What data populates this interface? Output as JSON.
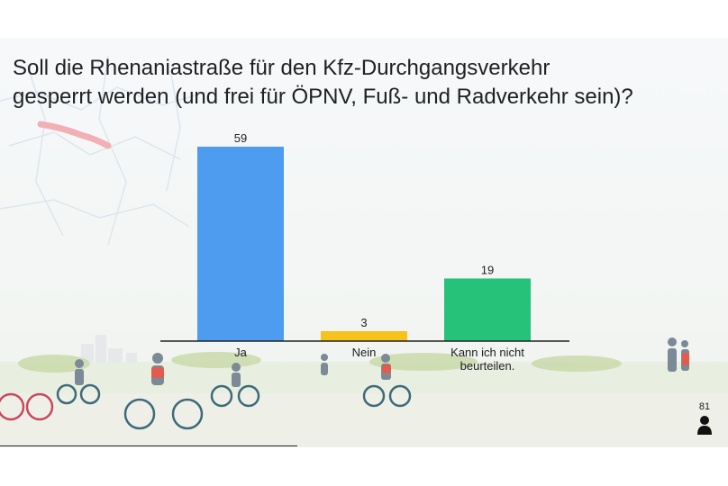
{
  "question": {
    "line1": "Soll die Rhenaniastraße für den Kfz-Durchgangsverkehr",
    "line2": "gesperrt werden (und frei für ÖPNV, Fuß- und Radverkehr sein)?"
  },
  "respondents": {
    "count": "81",
    "icon": "person-icon"
  },
  "chart_data": {
    "type": "bar",
    "categories": [
      [
        "Ja"
      ],
      [
        "Nein"
      ],
      [
        "Kann ich nicht",
        "beurteilen."
      ]
    ],
    "values": [
      59,
      3,
      19
    ],
    "colors": [
      "#4d9cf0",
      "#f7c21b",
      "#27c27a"
    ],
    "title": "",
    "xlabel": "",
    "ylabel": "",
    "ylim": [
      0,
      59
    ],
    "grid": false,
    "legend": "none"
  }
}
